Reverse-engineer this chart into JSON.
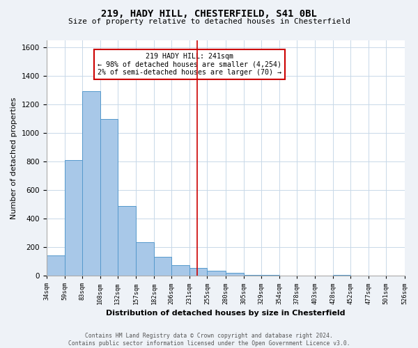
{
  "title": "219, HADY HILL, CHESTERFIELD, S41 0BL",
  "subtitle": "Size of property relative to detached houses in Chesterfield",
  "xlabel": "Distribution of detached houses by size in Chesterfield",
  "ylabel": "Number of detached properties",
  "bar_edges": [
    34,
    59,
    83,
    108,
    132,
    157,
    182,
    206,
    231,
    255,
    280,
    305,
    329,
    354,
    378,
    403,
    428,
    452,
    477,
    501,
    526
  ],
  "bar_heights": [
    140,
    810,
    1290,
    1095,
    490,
    235,
    130,
    75,
    55,
    35,
    20,
    5,
    5,
    0,
    0,
    0,
    5,
    0,
    0,
    0
  ],
  "bar_color": "#a8c8e8",
  "bar_edge_color": "#5599cc",
  "vline_x": 241,
  "vline_color": "#cc0000",
  "annotation_title": "219 HADY HILL: 241sqm",
  "annotation_line1": "← 98% of detached houses are smaller (4,254)",
  "annotation_line2": "2% of semi-detached houses are larger (70) →",
  "annotation_box_color": "#ffffff",
  "annotation_box_edge_color": "#cc0000",
  "ylim": [
    0,
    1650
  ],
  "yticks": [
    0,
    200,
    400,
    600,
    800,
    1000,
    1200,
    1400,
    1600
  ],
  "tick_labels": [
    "34sqm",
    "59sqm",
    "83sqm",
    "108sqm",
    "132sqm",
    "157sqm",
    "182sqm",
    "206sqm",
    "231sqm",
    "255sqm",
    "280sqm",
    "305sqm",
    "329sqm",
    "354sqm",
    "378sqm",
    "403sqm",
    "428sqm",
    "452sqm",
    "477sqm",
    "501sqm",
    "526sqm"
  ],
  "footer": "Contains HM Land Registry data © Crown copyright and database right 2024.\nContains public sector information licensed under the Open Government Licence v3.0.",
  "bg_color": "#eef2f7",
  "plot_bg_color": "#ffffff"
}
